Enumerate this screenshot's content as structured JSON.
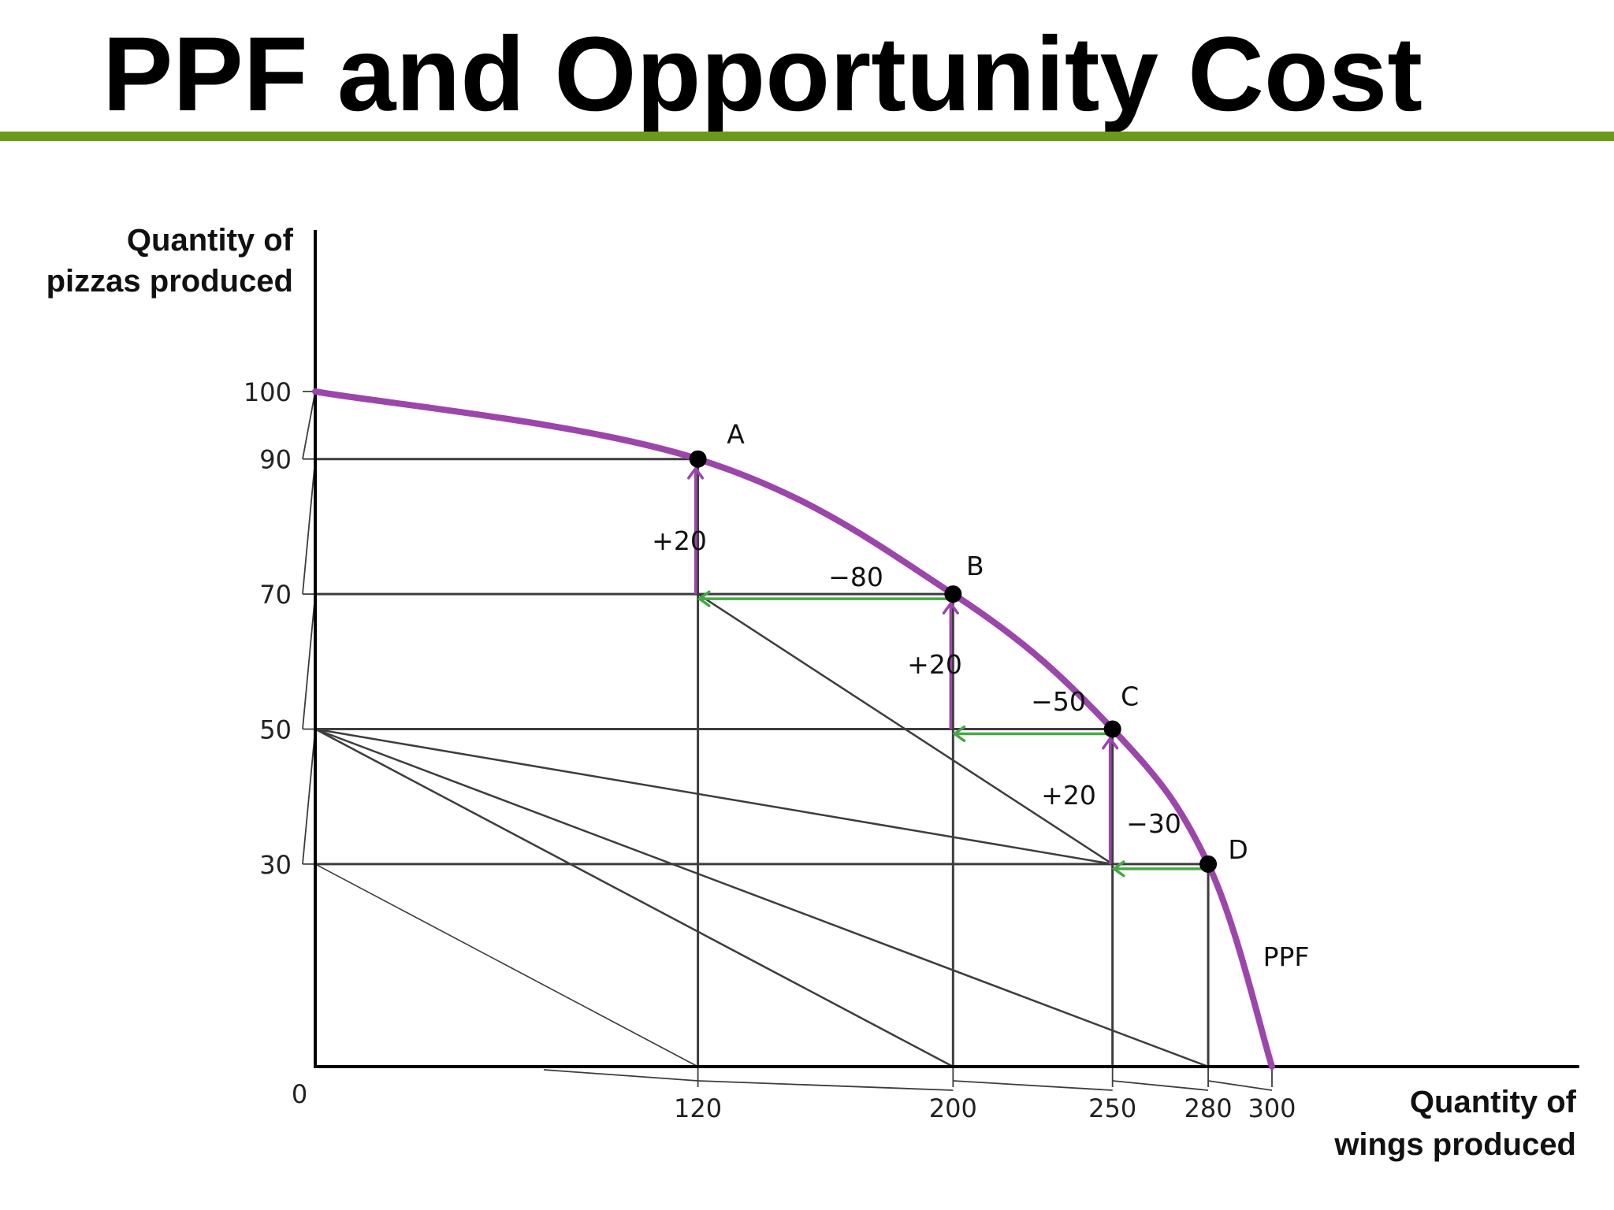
{
  "title": "PPF and Opportunity Cost",
  "colors": {
    "title_rule": "#6b9a1a",
    "ppf_curve": "#9c45ab",
    "pizza_gain_arrow": "#9c45ab",
    "wing_loss_arrow": "#46a846",
    "guide_lines": "#3d3d3d",
    "axes": "#000000",
    "points": "#000000"
  },
  "chart_data": {
    "type": "line",
    "title": "",
    "ylabel": [
      "Quantity of",
      "pizzas produced"
    ],
    "xlabel": [
      "Quantity of",
      "wings produced"
    ],
    "origin_label": "0",
    "xlim": [
      0,
      330
    ],
    "ylim": [
      0,
      120
    ],
    "x_ticks": [
      "120",
      "200",
      "250",
      "280",
      "300"
    ],
    "y_ticks": [
      "100",
      "90",
      "70",
      "50",
      "30"
    ],
    "series": [
      {
        "name": "PPF",
        "x": [
          0,
          120,
          200,
          250,
          280,
          300
        ],
        "y": [
          100,
          90,
          70,
          50,
          30,
          0
        ]
      }
    ],
    "points": [
      {
        "label": "A",
        "x": 120,
        "y": 90
      },
      {
        "label": "B",
        "x": 200,
        "y": 70
      },
      {
        "label": "C",
        "x": 250,
        "y": 50
      },
      {
        "label": "D",
        "x": 280,
        "y": 30
      }
    ],
    "pizza_gains": [
      {
        "label": "+20",
        "x": 120,
        "from": 70,
        "to": 90
      },
      {
        "label": "+20",
        "x": 200,
        "from": 50,
        "to": 70
      },
      {
        "label": "+20",
        "x": 250,
        "from": 30,
        "to": 50
      }
    ],
    "wing_losses": [
      {
        "label": "−80",
        "y": 70,
        "from": 200,
        "to": 120
      },
      {
        "label": "−50",
        "y": 50,
        "from": 250,
        "to": 200
      },
      {
        "label": "−30",
        "y": 30,
        "from": 280,
        "to": 250
      }
    ],
    "annotations": [
      "PPF"
    ],
    "grid": false,
    "legend": "none"
  }
}
